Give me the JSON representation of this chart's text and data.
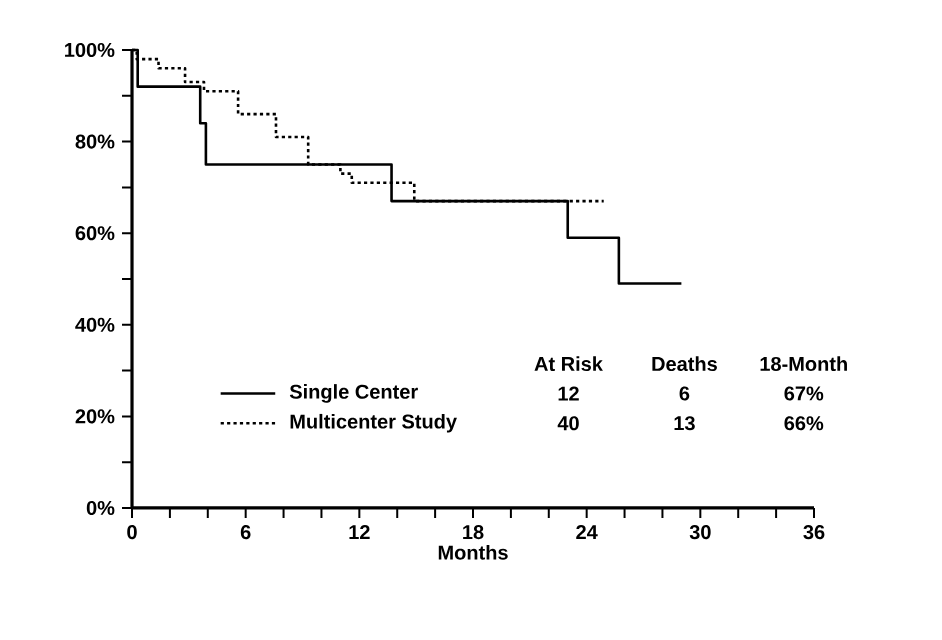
{
  "chart_data": {
    "type": "step",
    "xlabel": "Months",
    "xlim": [
      0,
      36
    ],
    "ylim": [
      0,
      100
    ],
    "xticks": [
      0,
      {
        "value": 2,
        "label": null
      },
      {
        "value": 4,
        "label": null
      },
      6,
      {
        "value": 8,
        "label": null
      },
      {
        "value": 10,
        "label": null
      },
      12,
      {
        "value": 14,
        "label": null
      },
      {
        "value": 16,
        "label": null
      },
      18,
      {
        "value": 20,
        "label": null
      },
      {
        "value": 22,
        "label": null
      },
      24,
      {
        "value": 26,
        "label": null
      },
      {
        "value": 28,
        "label": null
      },
      30,
      {
        "value": 32,
        "label": null
      },
      {
        "value": 34,
        "label": null
      },
      36
    ],
    "yticks": [
      {
        "value": 0,
        "label": "0%"
      },
      {
        "value": 10,
        "label": null
      },
      {
        "value": 20,
        "label": "20%"
      },
      {
        "value": 30,
        "label": null
      },
      {
        "value": 40,
        "label": "40%"
      },
      {
        "value": 50,
        "label": null
      },
      {
        "value": 60,
        "label": "60%"
      },
      {
        "value": 70,
        "label": null
      },
      {
        "value": 80,
        "label": "80%"
      },
      {
        "value": 90,
        "label": null
      },
      {
        "value": 100,
        "label": "100%"
      }
    ],
    "legend": "bottom left",
    "grid": false,
    "series": [
      {
        "name": "Single Center",
        "color": "#000000",
        "line_style": "solid",
        "x": [
          0,
          0.3,
          3.6,
          3.9,
          13.7,
          23,
          25.7,
          29
        ],
        "values": [
          100,
          92,
          84,
          75,
          67,
          59,
          49,
          49
        ]
      },
      {
        "name": "Multicenter Study",
        "color": "#000000",
        "line_style": "dotted",
        "x": [
          0,
          0.25,
          1.4,
          2.8,
          3.8,
          5.6,
          7.6,
          9.3,
          11,
          11.6,
          14.9,
          24.9
        ],
        "values": [
          100,
          98,
          96,
          93,
          91,
          86,
          81,
          75,
          73,
          71,
          67,
          67
        ]
      }
    ],
    "annotations": [
      "At Risk",
      "Deaths",
      "18-Month",
      "12",
      "6",
      "67%",
      "40",
      "13",
      "66%"
    ]
  }
}
